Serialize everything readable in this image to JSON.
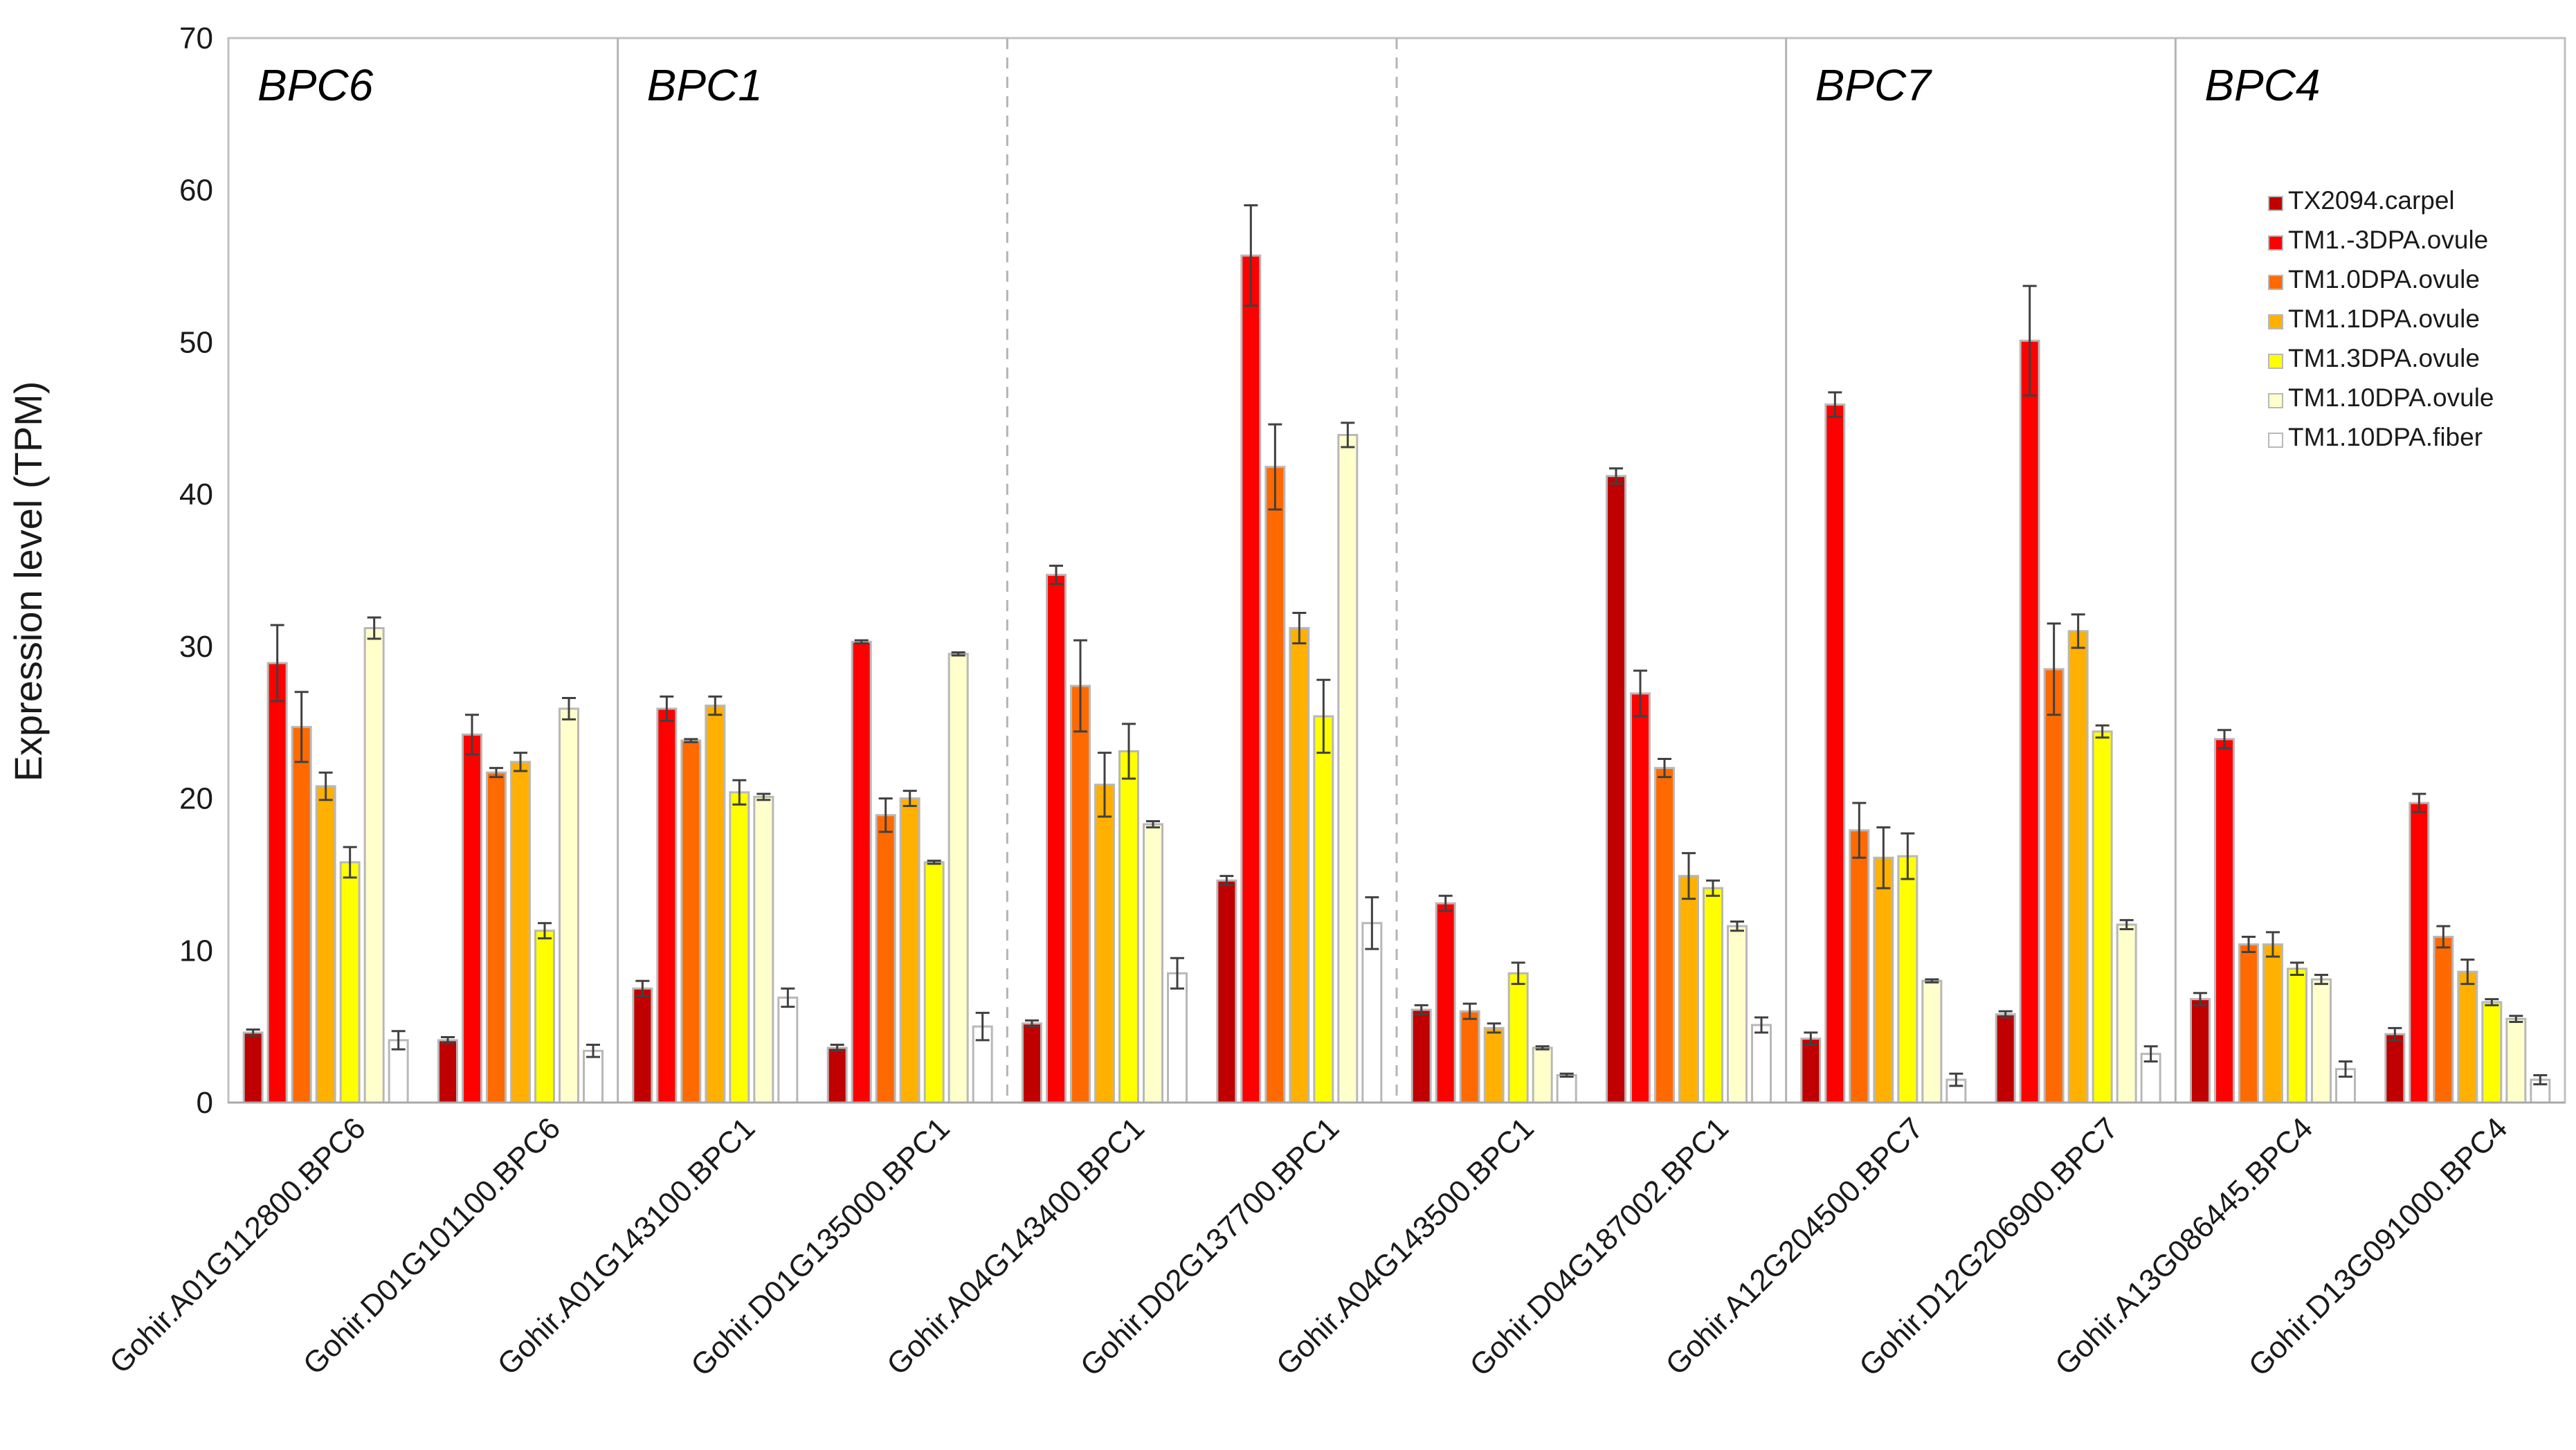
{
  "chart_data": {
    "type": "bar",
    "title": "",
    "xlabel": "",
    "ylabel": "Expression level (TPM)",
    "ylim": [
      0,
      70
    ],
    "yticks": [
      0,
      10,
      20,
      30,
      40,
      50,
      60,
      70
    ],
    "grid": false,
    "legend_position": "top-right",
    "categories": [
      "Gohir.A01G112800.BPC6",
      "Gohir.D01G101100.BPC6",
      "Gohir.A01G143100.BPC1",
      "Gohir.D01G135000.BPC1",
      "Gohir.A04G143400.BPC1",
      "Gohir.D02G137700.BPC1",
      "Gohir.A04G143500.BPC1",
      "Gohir.D04G187002.BPC1",
      "Gohir.A12G204500.BPC7",
      "Gohir.D12G206900.BPC7",
      "Gohir.A13G086445.BPC4",
      "Gohir.D13G091000.BPC4"
    ],
    "series": [
      {
        "name": "TX2094.carpel",
        "color": "#c00000",
        "values": [
          4.6,
          4.1,
          7.5,
          3.6,
          5.2,
          14.6,
          6.1,
          41.2,
          4.2,
          5.8,
          6.8,
          4.5
        ],
        "errors": [
          0.2,
          0.2,
          0.5,
          0.2,
          0.2,
          0.3,
          0.3,
          0.5,
          0.4,
          0.2,
          0.4,
          0.4
        ]
      },
      {
        "name": "TM1.-3DPA.ovule",
        "color": "#ff0000",
        "values": [
          28.9,
          24.2,
          25.9,
          30.3,
          34.7,
          55.7,
          13.1,
          26.9,
          45.9,
          50.1,
          23.9,
          19.7
        ],
        "errors": [
          2.5,
          1.3,
          0.8,
          0.1,
          0.6,
          3.3,
          0.5,
          1.5,
          0.8,
          3.6,
          0.6,
          0.6
        ]
      },
      {
        "name": "TM1.0DPA.ovule",
        "color": "#ff6a00",
        "values": [
          24.7,
          21.7,
          23.8,
          18.9,
          27.4,
          41.8,
          6.0,
          22.0,
          17.9,
          28.5,
          10.4,
          10.9
        ],
        "errors": [
          2.3,
          0.3,
          0.1,
          1.1,
          3.0,
          2.8,
          0.5,
          0.6,
          1.8,
          3.0,
          0.5,
          0.7
        ]
      },
      {
        "name": "TM1.1DPA.ovule",
        "color": "#ffb000",
        "values": [
          20.8,
          22.4,
          26.1,
          20.0,
          20.9,
          31.2,
          4.9,
          14.9,
          16.1,
          31.0,
          10.4,
          8.6
        ],
        "errors": [
          0.9,
          0.6,
          0.6,
          0.5,
          2.1,
          1.0,
          0.3,
          1.5,
          2.0,
          1.1,
          0.8,
          0.8
        ]
      },
      {
        "name": "TM1.3DPA.ovule",
        "color": "#ffff00",
        "values": [
          15.8,
          11.3,
          20.4,
          15.8,
          23.1,
          25.4,
          8.5,
          14.1,
          16.2,
          24.4,
          8.8,
          6.6
        ],
        "errors": [
          1.0,
          0.5,
          0.8,
          0.1,
          1.8,
          2.4,
          0.7,
          0.5,
          1.5,
          0.4,
          0.4,
          0.2
        ]
      },
      {
        "name": "TM1.10DPA.ovule",
        "color": "#ffffcc",
        "values": [
          31.2,
          25.9,
          20.1,
          29.5,
          18.3,
          43.9,
          3.6,
          11.6,
          8.0,
          11.7,
          8.1,
          5.5
        ],
        "errors": [
          0.7,
          0.7,
          0.2,
          0.1,
          0.2,
          0.8,
          0.1,
          0.3,
          0.1,
          0.3,
          0.3,
          0.2
        ]
      },
      {
        "name": "TM1.10DPA.fiber",
        "color": "#ffffff",
        "values": [
          4.1,
          3.4,
          6.9,
          5.0,
          8.5,
          11.8,
          1.8,
          5.1,
          1.5,
          3.2,
          2.2,
          1.5
        ],
        "errors": [
          0.6,
          0.4,
          0.6,
          0.9,
          1.0,
          1.7,
          0.1,
          0.5,
          0.4,
          0.5,
          0.5,
          0.3
        ]
      }
    ],
    "gene_groups": [
      {
        "label": "BPC6",
        "first": 0,
        "last": 1
      },
      {
        "label": "BPC1",
        "first": 2,
        "last": 7
      },
      {
        "label": "BPC7",
        "first": 8,
        "last": 9
      },
      {
        "label": "BPC4",
        "first": 10,
        "last": 11
      }
    ],
    "separators": [
      {
        "after": 1,
        "style": "solid"
      },
      {
        "after": 3,
        "style": "dashed"
      },
      {
        "after": 5,
        "style": "dashed"
      },
      {
        "after": 7,
        "style": "solid"
      },
      {
        "after": 9,
        "style": "solid"
      }
    ]
  }
}
